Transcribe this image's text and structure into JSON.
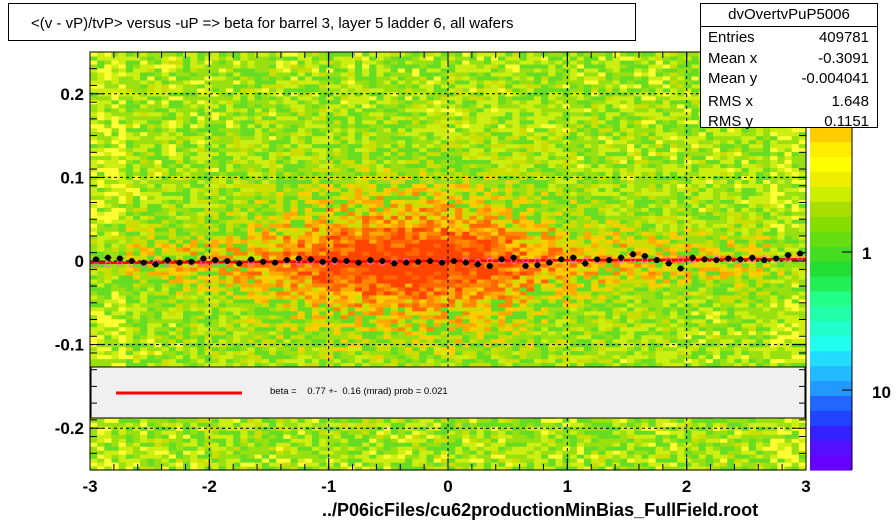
{
  "title": "<(v - vP)/tvP> versus  -uP => beta for barrel 3, layer 5 ladder 6, all wafers",
  "stats": {
    "name": "dvOvertvPuP5006",
    "rows": [
      {
        "label": "Entries",
        "value": "409781"
      },
      {
        "label": "Mean x",
        "value": "-0.3091"
      },
      {
        "label": "Mean y",
        "value": "-0.004041"
      },
      {
        "label": "RMS x",
        "value": "1.648"
      },
      {
        "label": "RMS y",
        "value": "0.1151"
      }
    ]
  },
  "fit_text": "beta =    0.77 +-  0.16 (mrad) prob = 0.021",
  "x_title": "../P06icFiles/cu62productionMinBias_FullField.root",
  "colorbar_labels": [
    "1",
    "10"
  ],
  "colors": {
    "fit_line": "#ff0000",
    "profile_marker": "#000000",
    "open_marker": "#ff66cc",
    "grid": "#000000"
  },
  "chart_data": {
    "type": "heatmap",
    "title": "<(v - vP)/tvP> versus  -uP => beta for barrel 3, layer 5 ladder 6, all wafers",
    "xlabel": "",
    "ylabel": "",
    "xlim": [
      -3,
      3
    ],
    "ylim": [
      -0.25,
      0.25
    ],
    "x_ticks": [
      -3,
      -2,
      -1,
      0,
      1,
      2,
      3
    ],
    "x_tick_labels": [
      "-3",
      "-2",
      "-1",
      "0",
      "1",
      "2",
      "3"
    ],
    "y_ticks": [
      -0.2,
      -0.1,
      0,
      0.1,
      0.2
    ],
    "y_tick_labels": [
      "-0.2",
      "-0.1",
      "0",
      "0.1",
      "0.2"
    ],
    "grid": true,
    "log_z": true,
    "fit_line": {
      "x": [
        -3,
        3
      ],
      "y": [
        -0.0023,
        0.0023
      ],
      "label": "beta =    0.77 +-  0.16 (mrad) prob = 0.021"
    },
    "profile_x": [
      -2.95,
      -2.85,
      -2.75,
      -2.65,
      -2.55,
      -2.45,
      -2.35,
      -2.25,
      -2.15,
      -2.05,
      -1.95,
      -1.85,
      -1.75,
      -1.65,
      -1.55,
      -1.45,
      -1.35,
      -1.25,
      -1.15,
      -1.05,
      -0.95,
      -0.85,
      -0.75,
      -0.65,
      -0.55,
      -0.45,
      -0.35,
      -0.25,
      -0.15,
      -0.05,
      0.05,
      0.15,
      0.25,
      0.35,
      0.45,
      0.55,
      0.65,
      0.75,
      0.85,
      0.95,
      1.05,
      1.15,
      1.25,
      1.35,
      1.45,
      1.55,
      1.65,
      1.75,
      1.85,
      1.95,
      2.05,
      2.15,
      2.25,
      2.35,
      2.45,
      2.55,
      2.65,
      2.75,
      2.85,
      2.95
    ],
    "profile_y": [
      0.002,
      0.004,
      0.003,
      0.0,
      -0.002,
      -0.004,
      0.001,
      -0.002,
      -0.001,
      0.003,
      0.001,
      0.0,
      -0.003,
      0.002,
      -0.001,
      -0.002,
      0.001,
      0.003,
      0.002,
      -0.001,
      0.001,
      0.0,
      -0.002,
      0.001,
      0.0,
      -0.003,
      -0.002,
      -0.001,
      0.0,
      -0.002,
      0.0,
      -0.002,
      -0.004,
      -0.006,
      0.002,
      0.004,
      -0.006,
      -0.005,
      -0.002,
      0.002,
      0.004,
      -0.003,
      0.002,
      0.001,
      0.004,
      0.008,
      0.006,
      0.001,
      -0.003,
      -0.009,
      0.004,
      0.002,
      0.001,
      0.003,
      0.002,
      0.004,
      0.001,
      0.003,
      0.007,
      0.009
    ],
    "open_x": [
      -2.95,
      -2.85,
      -2.75,
      -2.65,
      -2.55,
      -2.45,
      -2.35,
      -2.25,
      -2.15,
      -2.05,
      -1.95,
      -1.85,
      -1.75,
      -1.65,
      -1.55,
      -1.45,
      -1.35,
      -1.25,
      -1.15,
      -1.05,
      -0.95,
      -0.85,
      -0.75,
      -0.65,
      -0.55,
      -0.45,
      -0.35,
      -0.25,
      -0.15,
      -0.05,
      0.05,
      0.15,
      0.25,
      0.35,
      0.45,
      0.55,
      0.65,
      0.75,
      0.85,
      0.95,
      1.05,
      1.15,
      1.25,
      1.35,
      1.45,
      1.55,
      1.65,
      1.75,
      1.85,
      1.95,
      2.05,
      2.15,
      2.25,
      2.35,
      2.45,
      2.55,
      2.65,
      2.75,
      2.85,
      2.95
    ],
    "open_y": [
      -0.005,
      -0.004,
      -0.003,
      -0.004,
      -0.003,
      -0.002,
      -0.003,
      -0.002,
      -0.003,
      -0.002,
      -0.002,
      -0.001,
      -0.002,
      -0.003,
      -0.001,
      -0.002,
      -0.001,
      -0.002,
      -0.001,
      -0.002,
      -0.001,
      -0.001,
      -0.002,
      -0.001,
      -0.002,
      -0.001,
      0.0,
      -0.001,
      0.0,
      -0.001,
      0.0,
      0.001,
      -0.001,
      0.0,
      0.001,
      0.0,
      0.001,
      0.0,
      0.001,
      0.002,
      0.001,
      0.0,
      0.001,
      0.002,
      0.001,
      0.002,
      0.001,
      0.002,
      0.001,
      0.002,
      0.001,
      0.002,
      0.003,
      0.002,
      0.001,
      0.002,
      0.003,
      0.002,
      0.003,
      0.004
    ]
  }
}
